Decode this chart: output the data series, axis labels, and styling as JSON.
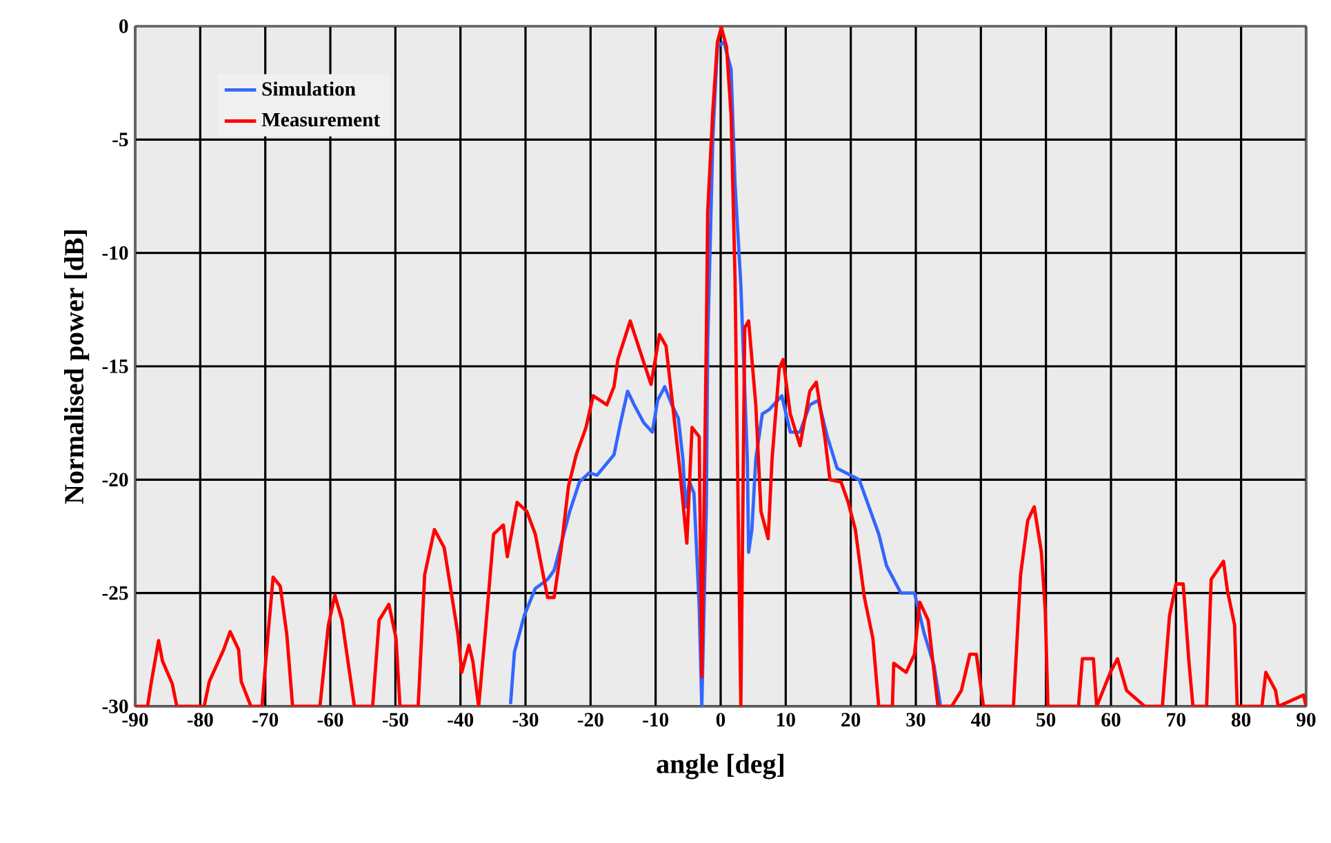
{
  "chart_data": {
    "type": "line",
    "xlabel": "angle [deg]",
    "ylabel": "Normalised power [dB]",
    "xlim": [
      -90,
      90
    ],
    "ylim": [
      -30,
      0
    ],
    "xticks": [
      -90,
      -80,
      -70,
      -60,
      -50,
      -40,
      -30,
      -20,
      -10,
      0,
      10,
      20,
      30,
      40,
      50,
      60,
      70,
      80,
      90
    ],
    "yticks": [
      -30,
      -25,
      -20,
      -15,
      -10,
      -5,
      0
    ],
    "grid": true,
    "legend": "top left",
    "marker": "none",
    "line_style": "solid",
    "series": [
      {
        "name": "Simulation",
        "color": "#3366ff",
        "x": [
          -32.3,
          -31.7,
          -30.2,
          -28.5,
          -26.6,
          -25.6,
          -24.5,
          -23.2,
          -21.7,
          -20.2,
          -19,
          -16.4,
          -15.4,
          -14.3,
          -13.3,
          -11.8,
          -10.5,
          -9.7,
          -8.6,
          -7.5,
          -6.5,
          -5.8,
          -5.4,
          -4.8,
          -4.1,
          -3.3,
          -2.9,
          -2.2,
          -2,
          -1.2,
          -0.5,
          0.5,
          1.6,
          2.2,
          3.1,
          4.1,
          4.3,
          4.8,
          5.4,
          6.4,
          7.5,
          9.4,
          10.7,
          12.2,
          13.7,
          15,
          16.4,
          17.9,
          21.3,
          22.8,
          24.3,
          25.5,
          27.7,
          29.8,
          31.3,
          32.8,
          33.8
        ],
        "values": [
          -29.9,
          -27.6,
          -26,
          -24.8,
          -24.4,
          -24,
          -22.8,
          -21.4,
          -20.1,
          -19.7,
          -19.8,
          -18.9,
          -17.5,
          -16.1,
          -16.7,
          -17.5,
          -17.9,
          -16.5,
          -15.9,
          -16.7,
          -17.3,
          -19.1,
          -21.2,
          -20.1,
          -20.6,
          -25.6,
          -30,
          -21.2,
          -14.1,
          -4.9,
          -0.9,
          -0.7,
          -1.9,
          -6.9,
          -11.4,
          -19.1,
          -23.2,
          -22.2,
          -19.1,
          -17.1,
          -16.9,
          -16.3,
          -17.9,
          -17.9,
          -16.7,
          -16.5,
          -18.1,
          -19.5,
          -20,
          -21.2,
          -22.4,
          -23.8,
          -25,
          -25,
          -26.8,
          -28.2,
          -30
        ]
      },
      {
        "name": "Measurement",
        "color": "#ff0000",
        "x": [
          -90,
          -88.1,
          -87.5,
          -86.4,
          -85.8,
          -84.3,
          -83.6,
          -79.4,
          -78.6,
          -76.4,
          -75.4,
          -74.1,
          -73.7,
          -72.2,
          -70.5,
          -69.9,
          -68.8,
          -67.7,
          -66.7,
          -65.8,
          -61.6,
          -60.3,
          -59.3,
          -58.2,
          -56.3,
          -53.5,
          -52.5,
          -51,
          -49.9,
          -49.3,
          -46.5,
          -45.5,
          -44,
          -42.5,
          -40.4,
          -39.8,
          -38.7,
          -38.1,
          -37.2,
          -36.2,
          -34.9,
          -33.4,
          -32.8,
          -31.3,
          -29.8,
          -28.5,
          -26.6,
          -25.6,
          -24.5,
          -23.4,
          -22.2,
          -20.7,
          -19.6,
          -17.5,
          -16.4,
          -15.8,
          -13.9,
          -12.2,
          -10.7,
          -9.4,
          -8.4,
          -7.3,
          -6.3,
          -5.2,
          -4.4,
          -3.3,
          -2.9,
          -2.2,
          -2,
          -1.2,
          -0.5,
          0.1,
          0.9,
          1.6,
          2.2,
          3.1,
          3.7,
          4.3,
          5.4,
          6.2,
          7.3,
          7.9,
          9,
          9.6,
          10.7,
          12.2,
          13.7,
          14.7,
          16,
          16.8,
          18.5,
          19.6,
          20.7,
          22.1,
          23.4,
          24.3,
          26.4,
          26.6,
          28.5,
          29.8,
          30.6,
          31.9,
          33.4,
          35.5,
          37,
          38.3,
          39.3,
          40.4,
          45,
          46.1,
          47.2,
          48.2,
          49.3,
          49.9,
          50.3,
          55,
          55.6,
          57.3,
          57.8,
          59.9,
          61,
          62.4,
          65.2,
          67.9,
          69,
          70,
          71.1,
          72,
          72.6,
          74.7,
          75.4,
          77.3,
          77.9,
          79,
          79.4,
          83.2,
          83.8,
          85.3,
          85.7,
          89.6,
          90
        ],
        "values": [
          -30,
          -30,
          -28.9,
          -27.1,
          -28,
          -29,
          -30,
          -30,
          -28.9,
          -27.5,
          -26.7,
          -27.5,
          -28.9,
          -30,
          -30,
          -27.9,
          -24.3,
          -24.7,
          -26.8,
          -30,
          -30,
          -26.4,
          -25.1,
          -26.2,
          -30,
          -30,
          -26.2,
          -25.5,
          -27,
          -30,
          -30,
          -24.2,
          -22.2,
          -23,
          -26.8,
          -28.5,
          -27.3,
          -28,
          -30,
          -26.8,
          -22.4,
          -22,
          -23.4,
          -21,
          -21.4,
          -22.4,
          -25.2,
          -25.2,
          -23,
          -20.3,
          -18.9,
          -17.7,
          -16.3,
          -16.7,
          -15.9,
          -14.7,
          -13,
          -14.5,
          -15.8,
          -13.6,
          -14.1,
          -16.9,
          -19.5,
          -22.8,
          -17.7,
          -18.1,
          -28.7,
          -13.7,
          -8.2,
          -3.7,
          -0.7,
          -0.05,
          -0.9,
          -3.9,
          -11,
          -30,
          -13.3,
          -13,
          -16.7,
          -21.4,
          -22.6,
          -19.1,
          -15.1,
          -14.7,
          -17.1,
          -18.5,
          -16.1,
          -15.7,
          -18.1,
          -20,
          -20.1,
          -21,
          -22.2,
          -25.2,
          -27,
          -30,
          -30,
          -28.1,
          -28.5,
          -27.7,
          -25.4,
          -26.2,
          -30,
          -30,
          -29.3,
          -27.7,
          -27.7,
          -30,
          -30,
          -24.2,
          -21.8,
          -21.2,
          -23.2,
          -25.8,
          -30,
          -30,
          -27.9,
          -27.9,
          -30,
          -28.5,
          -27.9,
          -29.3,
          -30,
          -30,
          -26,
          -24.6,
          -24.6,
          -28.1,
          -30,
          -30,
          -24.4,
          -23.6,
          -24.9,
          -26.4,
          -30,
          -30,
          -28.5,
          -29.3,
          -30,
          -29.5,
          -30
        ]
      }
    ]
  }
}
